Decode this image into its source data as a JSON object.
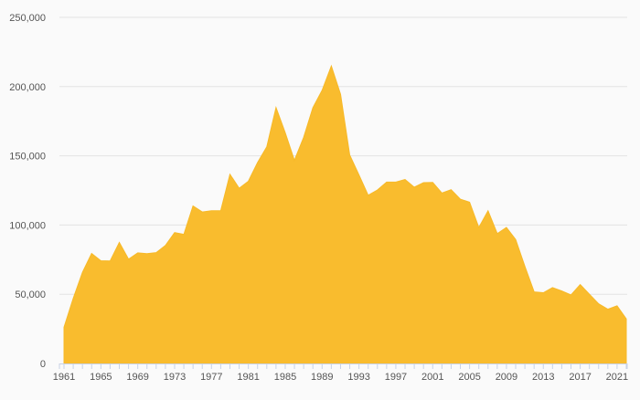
{
  "chart_data": {
    "type": "area",
    "title": "",
    "xlabel": "",
    "ylabel": "",
    "ylim": [
      0,
      250000
    ],
    "xlim": [
      1961,
      2022
    ],
    "grid": true,
    "legend": "none",
    "color": "#f9bc2e",
    "y_ticks": [
      0,
      50000,
      100000,
      150000,
      200000,
      250000
    ],
    "y_tick_labels": [
      "0",
      "50,000",
      "100,000",
      "150,000",
      "200,000",
      "250,000"
    ],
    "x_tick_labels": [
      "1961",
      "1965",
      "1969",
      "1973",
      "1977",
      "1981",
      "1985",
      "1989",
      "1993",
      "1997",
      "2001",
      "2005",
      "2009",
      "2013",
      "2017",
      "2021"
    ],
    "x": [
      1961,
      1962,
      1963,
      1964,
      1965,
      1966,
      1967,
      1968,
      1969,
      1970,
      1971,
      1972,
      1973,
      1974,
      1975,
      1976,
      1977,
      1978,
      1979,
      1980,
      1981,
      1982,
      1983,
      1984,
      1985,
      1986,
      1987,
      1988,
      1989,
      1990,
      1991,
      1992,
      1993,
      1994,
      1995,
      1996,
      1997,
      1998,
      1999,
      2000,
      2001,
      2002,
      2003,
      2004,
      2005,
      2006,
      2007,
      2008,
      2009,
      2010,
      2011,
      2012,
      2013,
      2014,
      2015,
      2016,
      2017,
      2018,
      2019,
      2020,
      2021,
      2022
    ],
    "values": [
      26200,
      47100,
      65800,
      79500,
      74200,
      74000,
      87400,
      75300,
      79900,
      79300,
      80100,
      85200,
      94500,
      93300,
      113800,
      109400,
      110300,
      110300,
      136700,
      126600,
      131600,
      145100,
      156500,
      184900,
      166600,
      146800,
      163300,
      184700,
      197300,
      214900,
      194400,
      150600,
      136300,
      121500,
      125300,
      131000,
      131000,
      132900,
      127300,
      130600,
      130800,
      123100,
      125500,
      118700,
      116500,
      98200,
      110300,
      93800,
      98200,
      89600,
      70200,
      51700,
      51100,
      54800,
      52400,
      49500,
      57000,
      50000,
      43100,
      39200,
      41600,
      32200
    ]
  }
}
